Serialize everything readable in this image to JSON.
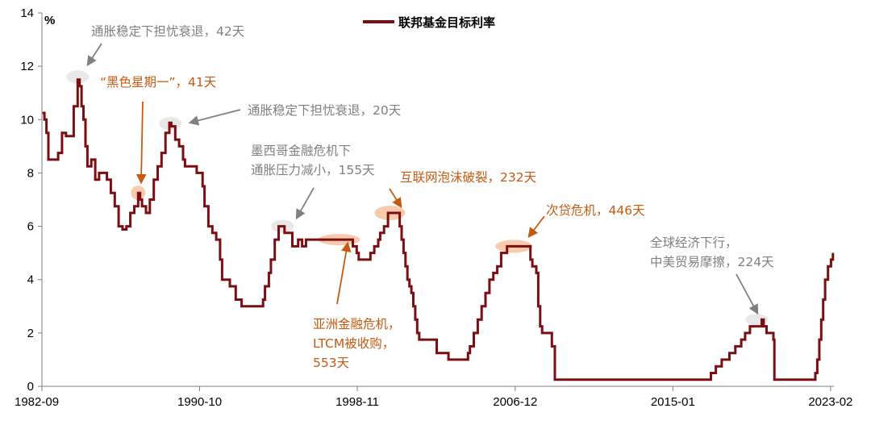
{
  "chart_data": {
    "type": "line",
    "ylabel": "%",
    "ylim": [
      0,
      14
    ],
    "y_ticks": [
      "0",
      "2",
      "4",
      "6",
      "8",
      "10",
      "12",
      "14"
    ],
    "x_ticks": [
      "1982-09",
      "1990-10",
      "1998-11",
      "2006-12",
      "2015-01",
      "2023-02"
    ],
    "legend_position": "top-center",
    "grid": false,
    "colors": {
      "line": "#7a0e12",
      "highlight": "#e8e8e8",
      "orange": "#c55a11",
      "gray": "#808080"
    },
    "series": [
      {
        "name": "联邦基金目标利率",
        "x": [
          1982.7,
          1982.8,
          1982.9,
          1983.0,
          1983.3,
          1983.5,
          1983.7,
          1983.9,
          1984.1,
          1984.3,
          1984.5,
          1984.6,
          1984.7,
          1984.8,
          1984.9,
          1985.0,
          1985.2,
          1985.4,
          1985.6,
          1986.0,
          1986.2,
          1986.4,
          1986.6,
          1986.8,
          1987.0,
          1987.2,
          1987.4,
          1987.6,
          1987.7,
          1987.8,
          1987.9,
          1988.0,
          1988.2,
          1988.4,
          1988.6,
          1988.8,
          1989.0,
          1989.2,
          1989.3,
          1989.5,
          1989.7,
          1989.9,
          1990.0,
          1990.3,
          1990.6,
          1990.9,
          1991.0,
          1991.2,
          1991.4,
          1991.6,
          1991.8,
          1991.9,
          1992.1,
          1992.3,
          1992.6,
          1992.9,
          1993.5,
          1994.0,
          1994.1,
          1994.3,
          1994.4,
          1994.6,
          1994.8,
          1994.9,
          1995.1,
          1995.5,
          1995.8,
          1996.0,
          1996.2,
          1997.2,
          1998.6,
          1998.8,
          1998.9,
          1999.3,
          1999.5,
          1999.7,
          1999.9,
          2000.0,
          2000.2,
          2000.4,
          2000.9,
          2001.0,
          2001.1,
          2001.2,
          2001.3,
          2001.4,
          2001.5,
          2001.6,
          2001.7,
          2001.8,
          2001.9,
          2002.0,
          2002.9,
          2003.5,
          2004.5,
          2004.6,
          2004.8,
          2005.0,
          2005.2,
          2005.4,
          2005.6,
          2005.8,
          2006.0,
          2006.2,
          2006.5,
          2007.6,
          2007.7,
          2007.8,
          2008.0,
          2008.1,
          2008.2,
          2008.3,
          2008.8,
          2008.95,
          2015.95,
          2016.95,
          2017.2,
          2017.5,
          2017.9,
          2018.2,
          2018.5,
          2018.7,
          2018.95,
          2019.55,
          2019.65,
          2019.8,
          2020.15,
          2020.2,
          2022.15,
          2022.3,
          2022.4,
          2022.5,
          2022.6,
          2022.7,
          2022.8,
          2022.95,
          2023.1,
          2023.2
        ],
        "values": [
          10.25,
          10.0,
          9.5,
          8.5,
          8.5,
          8.75,
          9.5,
          9.38,
          9.38,
          10.5,
          11.5,
          11.25,
          10.5,
          10.0,
          9.0,
          8.25,
          8.5,
          7.75,
          8.0,
          7.75,
          7.25,
          6.75,
          6.0,
          5.88,
          6.0,
          6.5,
          6.75,
          7.25,
          7.0,
          6.75,
          6.75,
          6.5,
          7.0,
          7.75,
          8.25,
          8.75,
          9.5,
          9.88,
          9.75,
          9.25,
          9.0,
          8.5,
          8.25,
          8.25,
          8.0,
          7.5,
          6.75,
          6.0,
          5.75,
          5.5,
          4.75,
          4.0,
          4.0,
          3.75,
          3.25,
          3.0,
          3.0,
          3.25,
          3.75,
          4.25,
          4.75,
          5.5,
          6.0,
          6.0,
          5.75,
          5.25,
          5.5,
          5.25,
          5.5,
          5.5,
          5.25,
          5.0,
          4.75,
          4.75,
          5.0,
          5.25,
          5.5,
          5.75,
          6.0,
          6.5,
          6.5,
          6.0,
          5.5,
          5.0,
          4.5,
          4.0,
          3.75,
          3.5,
          3.0,
          2.5,
          2.0,
          1.75,
          1.25,
          1.0,
          1.25,
          1.5,
          2.0,
          2.5,
          3.0,
          3.5,
          4.0,
          4.25,
          4.5,
          5.0,
          5.25,
          5.25,
          4.75,
          4.5,
          4.25,
          3.0,
          2.25,
          2.0,
          1.5,
          0.25,
          0.25,
          0.5,
          0.75,
          1.0,
          1.25,
          1.5,
          1.75,
          2.0,
          2.25,
          2.5,
          2.25,
          2.0,
          1.75,
          0.25,
          0.25,
          0.5,
          1.0,
          1.75,
          2.5,
          3.25,
          4.0,
          4.5,
          4.75,
          5.0
        ]
      }
    ],
    "annotations": [
      {
        "lines": [
          "通胀稳定下担忧衰退，42天"
        ],
        "color": "gray"
      },
      {
        "lines": [
          "“黑色星期一”，41天"
        ],
        "color": "orange"
      },
      {
        "lines": [
          "通胀稳定下担忧衰退，20天"
        ],
        "color": "gray"
      },
      {
        "lines": [
          "墨西哥金融危机下",
          "通胀压力减小，155天"
        ],
        "color": "gray"
      },
      {
        "lines": [
          "互联网泡沫破裂，232天"
        ],
        "color": "orange"
      },
      {
        "lines": [
          "次贷危机，446天"
        ],
        "color": "orange"
      },
      {
        "lines": [
          "全球经济下行，",
          "中美贸易摩擦，224天"
        ],
        "color": "gray"
      },
      {
        "lines": [
          "亚洲金融危机，",
          "LTCM被收购，",
          "553天"
        ],
        "color": "orange"
      }
    ]
  }
}
